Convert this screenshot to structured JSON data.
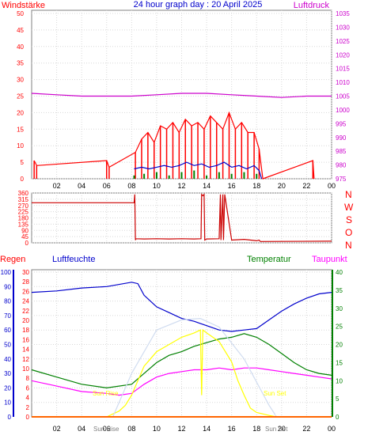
{
  "chart_data": [
    {
      "type": "line",
      "title": "24 hour graph day : 20 April 2025",
      "left_label": "Windstärke",
      "right_label": "Luftdruck",
      "x_ticks": [
        "02",
        "04",
        "06",
        "08",
        "10",
        "12",
        "14",
        "16",
        "18",
        "20",
        "22",
        "00"
      ],
      "y_left_ticks": [
        0,
        5,
        10,
        15,
        20,
        25,
        30,
        35,
        40,
        45,
        50
      ],
      "y_right_ticks": [
        975,
        980,
        985,
        990,
        995,
        1000,
        1005,
        1010,
        1015,
        1020,
        1025,
        1030,
        1035
      ],
      "ylim_left": [
        0,
        50
      ],
      "ylim_right": [
        975,
        1035
      ],
      "grid": true,
      "series": [
        {
          "key": "gust",
          "color": "#ff0000",
          "x": [
            0.2,
            0.4,
            6.0,
            6.2,
            8.3,
            8.8,
            9.3,
            9.8,
            10.3,
            10.8,
            11.3,
            11.8,
            12.3,
            12.8,
            13.3,
            13.8,
            14.3,
            14.8,
            15.3,
            15.8,
            16.3,
            16.8,
            17.3,
            17.8,
            18.2,
            18.5,
            22.5,
            22.6
          ],
          "y": [
            5.5,
            4.0,
            5.5,
            3.5,
            8,
            12,
            14,
            11,
            16,
            15,
            17,
            14,
            18,
            16,
            17,
            15,
            19,
            17,
            15,
            20,
            15,
            17,
            14,
            14,
            9,
            0,
            5.5,
            0
          ]
        },
        {
          "key": "mean",
          "color": "#0000cc",
          "x": [
            8.2,
            8.8,
            9.4,
            10,
            10.6,
            11.2,
            11.8,
            12.4,
            13,
            13.6,
            14.2,
            14.8,
            15.4,
            16,
            16.6,
            17.2,
            17.8,
            18.2,
            18.4
          ],
          "y": [
            3,
            3.5,
            3,
            3.5,
            4,
            3.5,
            4,
            5,
            4,
            4.5,
            3.5,
            4,
            5,
            3.5,
            4,
            3,
            4,
            2.5,
            0
          ]
        },
        {
          "key": "calm",
          "color": "#008000",
          "x": [
            8.2,
            9,
            10,
            11,
            12,
            13,
            14,
            15,
            16,
            17,
            18,
            18.3
          ],
          "y": [
            1,
            1.5,
            2,
            1,
            2,
            2.5,
            1,
            2,
            1.5,
            2,
            1.5,
            0
          ]
        },
        {
          "key": "pressure",
          "color": "#cc00cc",
          "axis": "right",
          "x": [
            0,
            2,
            4,
            6,
            8,
            10,
            12,
            14,
            16,
            18,
            20,
            22,
            24
          ],
          "y": [
            1006,
            1005.5,
            1005,
            1005,
            1005,
            1005.5,
            1006,
            1006,
            1005.5,
            1005,
            1004.5,
            1005,
            1005
          ]
        }
      ]
    },
    {
      "type": "line",
      "right_labels": [
        "N",
        "W",
        "S",
        "O",
        "N"
      ],
      "y_ticks": [
        0,
        45,
        90,
        135,
        180,
        225,
        270,
        315,
        360
      ],
      "ylim": [
        0,
        360
      ],
      "series": [
        {
          "key": "direction",
          "color": "#cc0000",
          "x": [
            0,
            8.2,
            8.25,
            8.3,
            8.35,
            9,
            10,
            11,
            12,
            13,
            13.55,
            13.6,
            13.7,
            13.8,
            13.85,
            14,
            15,
            15.1,
            15.15,
            15.3,
            15.35,
            15.45,
            16,
            17,
            18,
            18.2,
            18.3,
            24
          ],
          "y": [
            290,
            290,
            350,
            20,
            30,
            28,
            30,
            28,
            30,
            28,
            30,
            350,
            340,
            350,
            20,
            28,
            30,
            350,
            20,
            350,
            20,
            350,
            20,
            25,
            15,
            20,
            10,
            12
          ]
        }
      ]
    },
    {
      "type": "line",
      "left_labels": [
        "Regen",
        "Luftfeuchte"
      ],
      "right_labels": [
        "Temperatur",
        "Taupunkt"
      ],
      "sun_labels": [
        "Sun Rise",
        "Sun Rise",
        "Sun Set",
        "Sun Set"
      ],
      "y_humidity_ticks": [
        0,
        10,
        20,
        30,
        40,
        50,
        60,
        70,
        80,
        90,
        100
      ],
      "y_rain_ticks": [
        0,
        2,
        4,
        6,
        8,
        10,
        12,
        14,
        16,
        18,
        20,
        22,
        24,
        26,
        28,
        30
      ],
      "y_temp_ticks": [
        0,
        5,
        10,
        15,
        20,
        25,
        30,
        35,
        40
      ],
      "series": [
        {
          "key": "humidity",
          "color": "#0000cc",
          "axis": "humidity",
          "x": [
            0,
            2,
            4,
            6,
            8,
            8.5,
            9,
            10,
            11,
            12,
            13,
            14,
            15,
            16,
            17,
            18,
            19,
            20,
            21,
            22,
            23,
            24
          ],
          "y": [
            86,
            87,
            89,
            90,
            93,
            92,
            84,
            76,
            72,
            68,
            66,
            63,
            60,
            59,
            60,
            61,
            67,
            73,
            78,
            82,
            85,
            86
          ]
        },
        {
          "key": "temperature",
          "color": "#008000",
          "axis": "temp",
          "x": [
            0,
            2,
            4,
            6,
            8,
            9,
            10,
            11,
            12,
            13,
            14,
            15,
            16,
            17,
            18,
            19,
            20,
            21,
            22,
            23,
            24
          ],
          "y": [
            13,
            11,
            9,
            8,
            9,
            12,
            15,
            17,
            18,
            19.5,
            20.5,
            21.5,
            22,
            23,
            22,
            20,
            17.5,
            15,
            13,
            12,
            11.5
          ]
        },
        {
          "key": "dewpoint",
          "color": "#ff00ff",
          "axis": "temp",
          "x": [
            0,
            2,
            4,
            6,
            7,
            8,
            9,
            10,
            11,
            12,
            13,
            14,
            15,
            16,
            17,
            18,
            19,
            20,
            21,
            22,
            23,
            24
          ],
          "y": [
            10,
            8.5,
            7,
            6.5,
            6,
            6.5,
            9,
            11,
            12,
            12.5,
            13,
            13,
            13.5,
            13,
            13.5,
            13.5,
            13,
            12.5,
            12,
            11.5,
            11,
            10.5
          ]
        },
        {
          "key": "solar",
          "color": "#ffff00",
          "axis": "humidity",
          "x": [
            6,
            7,
            7.5,
            8,
            8.5,
            9,
            9.5,
            10,
            11,
            12,
            13,
            13.5,
            13.6,
            13.7,
            14,
            14.5,
            15,
            16,
            16.5,
            17,
            17.5,
            18,
            19,
            19.6
          ],
          "y": [
            0,
            4,
            8,
            15,
            25,
            35,
            40,
            45,
            50,
            55,
            58,
            60,
            15,
            60,
            58,
            55,
            52,
            38,
            25,
            15,
            6,
            3,
            1,
            0
          ]
        },
        {
          "key": "max_solar",
          "color": "#d0dcf0",
          "axis": "humidity",
          "x": [
            6.5,
            8,
            10,
            12,
            13.5,
            15,
            17,
            19,
            19.6
          ],
          "y": [
            0,
            30,
            60,
            67,
            68,
            62,
            40,
            8,
            0
          ]
        },
        {
          "key": "rain",
          "color": "#ff6600",
          "axis": "rain",
          "x": [
            0,
            24
          ],
          "y": [
            0,
            0
          ]
        }
      ]
    }
  ]
}
